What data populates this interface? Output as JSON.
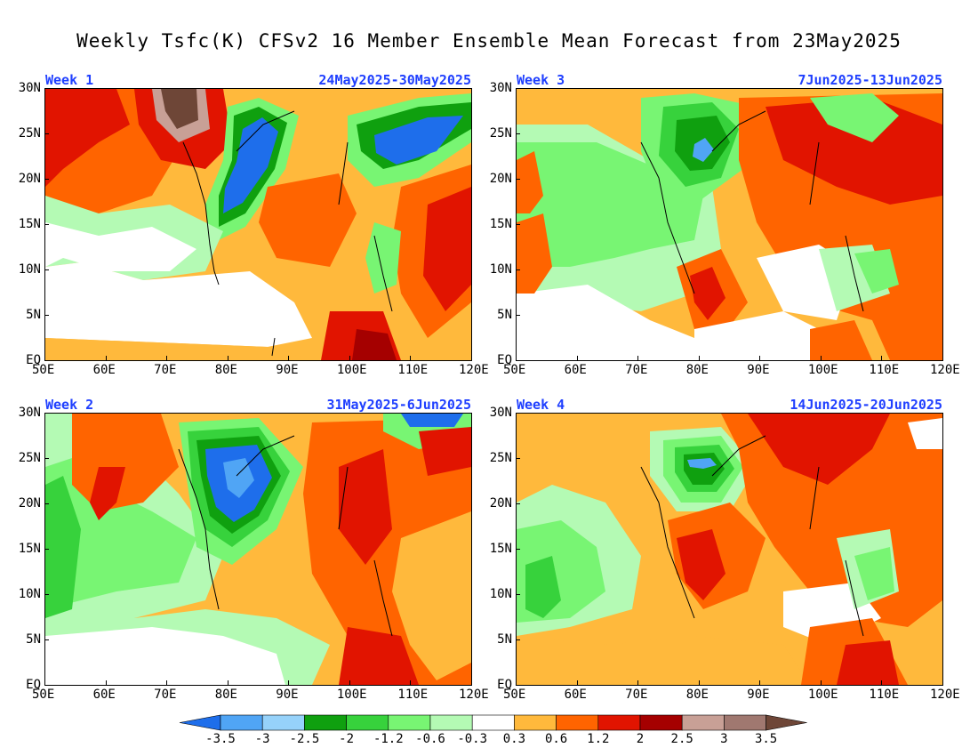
{
  "title": "Weekly Tsfc(K) CFSv2 16 Member Ensemble Mean Forecast from 23May2025",
  "panels": [
    {
      "id": "week1",
      "label": "Week 1",
      "dates": "24May2025-30May2025"
    },
    {
      "id": "week3",
      "label": "Week 3",
      "dates": "7Jun2025-13Jun2025"
    },
    {
      "id": "week2",
      "label": "Week 2",
      "dates": "31May2025-6Jun2025"
    },
    {
      "id": "week4",
      "label": "Week 4",
      "dates": "14Jun2025-20Jun2025"
    }
  ],
  "axes": {
    "lon_labels": [
      "50E",
      "60E",
      "70E",
      "80E",
      "90E",
      "100E",
      "110E",
      "120E"
    ],
    "lat_labels": [
      "30N",
      "25N",
      "20N",
      "15N",
      "10N",
      "5N",
      "EQ"
    ],
    "lon_range": [
      50,
      120
    ],
    "lat_range": [
      0,
      30
    ]
  },
  "colorbar": {
    "labels": [
      "-3.5",
      "-3",
      "-2.5",
      "-2",
      "-1.2",
      "-0.6",
      "-0.3",
      "0.3",
      "0.6",
      "1.2",
      "2",
      "2.5",
      "3",
      "3.5"
    ],
    "colors": [
      "#1e6eeb",
      "#50a5f5",
      "#96d2fa",
      "#0fa00f",
      "#37d23c",
      "#78f573",
      "#b4fab4",
      "#ffffff",
      "#ffb93c",
      "#ff6400",
      "#e11400",
      "#a50000",
      "#c8a096",
      "#a07870",
      "#6e4637"
    ]
  }
}
